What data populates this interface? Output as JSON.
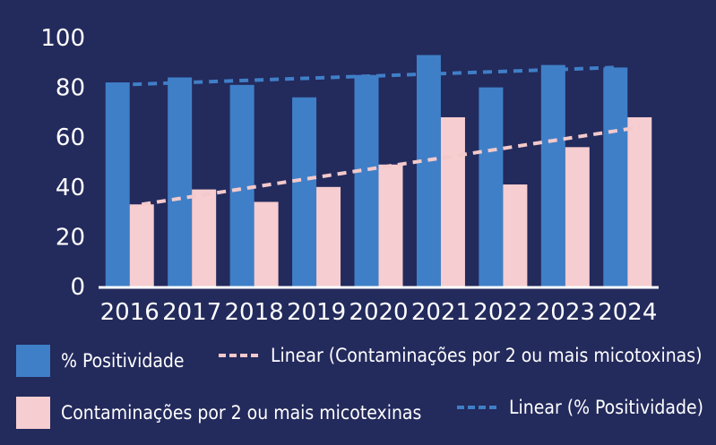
{
  "chart_data": {
    "type": "bar",
    "categories": [
      "2016",
      "2017",
      "2018",
      "2019",
      "2020",
      "2021",
      "2022",
      "2023",
      "2024"
    ],
    "series": [
      {
        "name": "% Positividade",
        "values": [
          82,
          84,
          81,
          76,
          85,
          93,
          80,
          89,
          88
        ],
        "color": "#3f7fc7"
      },
      {
        "name": "Contaminações por 2 ou mais micotexinas",
        "values": [
          33,
          39,
          34,
          40,
          49,
          68,
          41,
          56,
          68
        ],
        "color": "#f6cdd0"
      }
    ],
    "trendlines": [
      {
        "name": "Linear (Contaminações por 2 ou mais micotoxinas)",
        "of_series": 1,
        "start": 33,
        "end": 64,
        "color": "#f3c9cb"
      },
      {
        "name": "Linear (% Positividade)",
        "of_series": 0,
        "start": 81,
        "end": 88,
        "color": "#3f7fc7"
      }
    ],
    "ylim": [
      0,
      100
    ],
    "yticks": [
      "0",
      "20",
      "40",
      "60",
      "80",
      "100"
    ],
    "grid": false,
    "legend_position": "bottom"
  },
  "legend": {
    "item1": "% Positividade",
    "item2": "Linear (Contaminações por 2 ou mais micotoxinas)",
    "item3": "Contaminações por 2 ou mais micotexinas",
    "item4": "Linear (% Positividade)"
  },
  "colors": {
    "background": "#232a5c",
    "axis": "#ffffff",
    "text": "#ffffff"
  }
}
